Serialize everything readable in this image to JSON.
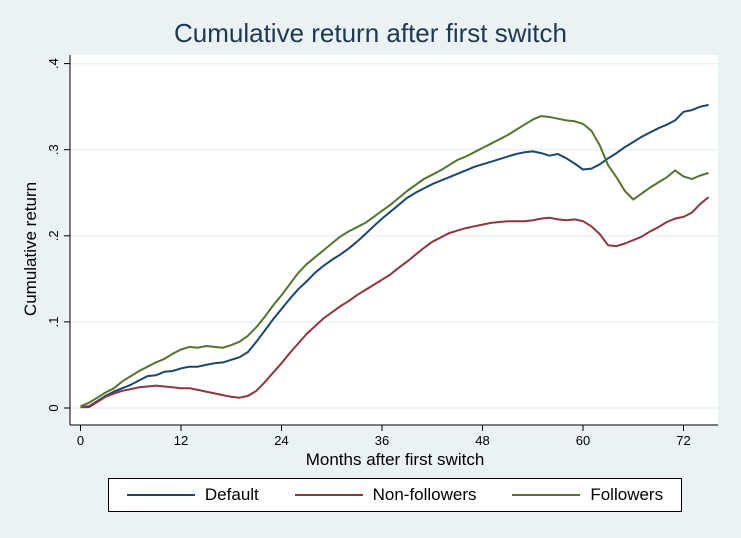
{
  "chart_data": {
    "type": "line",
    "title": "Cumulative return after first switch",
    "xlabel": "Months after first switch",
    "ylabel": "Cumulative return",
    "xlim": [
      0,
      75
    ],
    "ylim": [
      0,
      0.4
    ],
    "xticks": [
      0,
      12,
      24,
      36,
      48,
      60,
      72
    ],
    "xtick_labels": [
      "0",
      "12",
      "24",
      "36",
      "48",
      "60",
      "72"
    ],
    "yticks": [
      0,
      0.1,
      0.2,
      0.3,
      0.4
    ],
    "ytick_labels": [
      "0",
      ".1",
      ".2",
      ".3",
      ".4"
    ],
    "grid": true,
    "legend_position": "bottom",
    "x": [
      0,
      1,
      2,
      3,
      4,
      5,
      6,
      7,
      8,
      9,
      10,
      11,
      12,
      13,
      14,
      15,
      16,
      17,
      18,
      19,
      20,
      21,
      22,
      23,
      24,
      25,
      26,
      27,
      28,
      29,
      30,
      31,
      32,
      33,
      34,
      35,
      36,
      37,
      38,
      39,
      40,
      41,
      42,
      43,
      44,
      45,
      46,
      47,
      48,
      49,
      50,
      51,
      52,
      53,
      54,
      55,
      56,
      57,
      58,
      59,
      60,
      61,
      62,
      63,
      64,
      65,
      66,
      67,
      68,
      69,
      70,
      71,
      72,
      73,
      74,
      75
    ],
    "series": [
      {
        "name": "Default",
        "color": "#1a476f",
        "values": [
          0.001,
          0.002,
          0.008,
          0.014,
          0.019,
          0.023,
          0.027,
          0.032,
          0.037,
          0.038,
          0.042,
          0.043,
          0.046,
          0.048,
          0.048,
          0.05,
          0.052,
          0.053,
          0.056,
          0.059,
          0.065,
          0.077,
          0.09,
          0.103,
          0.115,
          0.127,
          0.138,
          0.147,
          0.157,
          0.165,
          0.172,
          0.178,
          0.185,
          0.193,
          0.202,
          0.211,
          0.22,
          0.228,
          0.236,
          0.244,
          0.25,
          0.255,
          0.26,
          0.264,
          0.268,
          0.272,
          0.276,
          0.28,
          0.283,
          0.286,
          0.289,
          0.292,
          0.295,
          0.297,
          0.298,
          0.296,
          0.293,
          0.295,
          0.29,
          0.284,
          0.277,
          0.278,
          0.283,
          0.29,
          0.296,
          0.303,
          0.309,
          0.315,
          0.32,
          0.325,
          0.329,
          0.334,
          0.344,
          0.346,
          0.35,
          0.352
        ]
      },
      {
        "name": "Non-followers",
        "color": "#90353b",
        "values": [
          0.001,
          0.001,
          0.007,
          0.013,
          0.017,
          0.02,
          0.022,
          0.024,
          0.025,
          0.026,
          0.025,
          0.024,
          0.023,
          0.023,
          0.021,
          0.019,
          0.017,
          0.015,
          0.013,
          0.012,
          0.014,
          0.02,
          0.03,
          0.041,
          0.052,
          0.064,
          0.075,
          0.086,
          0.095,
          0.104,
          0.111,
          0.118,
          0.124,
          0.131,
          0.137,
          0.143,
          0.149,
          0.155,
          0.163,
          0.17,
          0.178,
          0.186,
          0.193,
          0.198,
          0.203,
          0.206,
          0.209,
          0.211,
          0.213,
          0.215,
          0.216,
          0.217,
          0.217,
          0.217,
          0.218,
          0.22,
          0.221,
          0.219,
          0.218,
          0.219,
          0.217,
          0.211,
          0.202,
          0.189,
          0.188,
          0.191,
          0.195,
          0.199,
          0.205,
          0.21,
          0.216,
          0.22,
          0.222,
          0.227,
          0.237,
          0.245
        ]
      },
      {
        "name": "Followers",
        "color": "#55752f",
        "values": [
          0.002,
          0.006,
          0.012,
          0.018,
          0.023,
          0.031,
          0.037,
          0.043,
          0.048,
          0.053,
          0.057,
          0.063,
          0.068,
          0.071,
          0.07,
          0.072,
          0.071,
          0.07,
          0.073,
          0.077,
          0.084,
          0.094,
          0.106,
          0.119,
          0.131,
          0.144,
          0.157,
          0.167,
          0.175,
          0.183,
          0.191,
          0.199,
          0.205,
          0.21,
          0.215,
          0.222,
          0.229,
          0.236,
          0.244,
          0.252,
          0.259,
          0.266,
          0.271,
          0.276,
          0.282,
          0.288,
          0.292,
          0.297,
          0.302,
          0.307,
          0.312,
          0.317,
          0.323,
          0.329,
          0.335,
          0.339,
          0.338,
          0.336,
          0.334,
          0.333,
          0.33,
          0.322,
          0.305,
          0.282,
          0.268,
          0.252,
          0.242,
          0.249,
          0.256,
          0.262,
          0.268,
          0.276,
          0.269,
          0.266,
          0.27,
          0.273
        ]
      }
    ]
  }
}
